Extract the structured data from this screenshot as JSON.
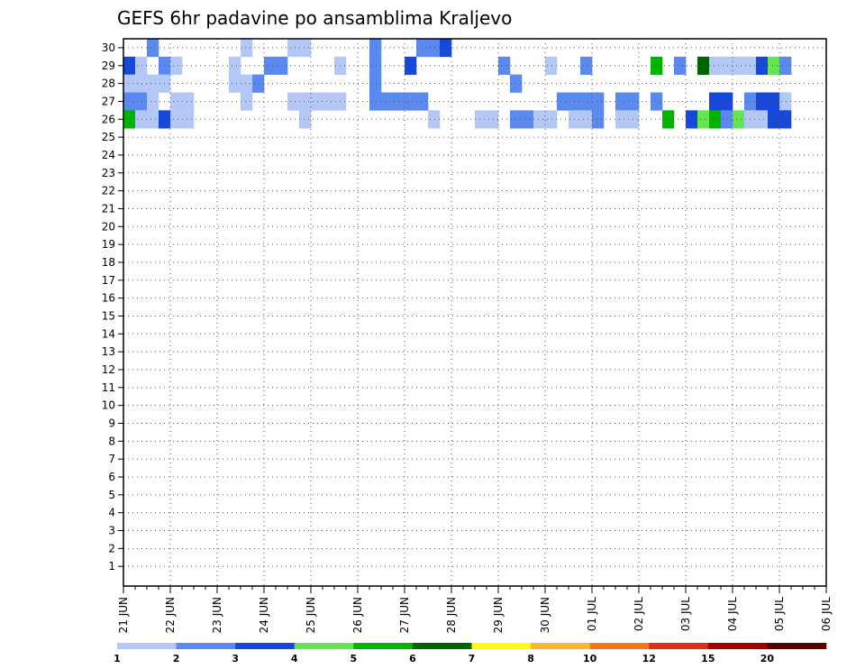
{
  "chart_data": {
    "type": "heatmap",
    "title": "GEFS 6hr padavine po ansamblima Kraljevo",
    "xlabel": "",
    "ylabel": "",
    "y_categories": [
      1,
      2,
      3,
      4,
      5,
      6,
      7,
      8,
      9,
      10,
      11,
      12,
      13,
      14,
      15,
      16,
      17,
      18,
      19,
      20,
      21,
      22,
      23,
      24,
      25,
      26,
      27,
      28,
      29,
      30
    ],
    "x_tick_labels": [
      "21 JUN",
      "22 JUN",
      "23 JUN",
      "24 JUN",
      "25 JUN",
      "26 JUN",
      "27 JUN",
      "28 JUN",
      "29 JUN",
      "30 JUN",
      "01 JUL",
      "02 JUL",
      "03 JUL",
      "04 JUL",
      "05 JUL",
      "06 JUL"
    ],
    "x_steps_per_day": 4,
    "x_range_steps": [
      0,
      60
    ],
    "colorbar": {
      "labels": [
        "1",
        "2",
        "3",
        "4",
        "5",
        "6",
        "7",
        "8",
        "10",
        "12",
        "15",
        "20"
      ],
      "colors": [
        "#b4c8f8",
        "#5a8af0",
        "#1648dc",
        "#64e650",
        "#00b400",
        "#006400",
        "#ffff00",
        "#ffb432",
        "#fa7814",
        "#dc3214",
        "#a00000",
        "#5a0000"
      ]
    },
    "grid": true,
    "cells": [
      [
        2,
        30,
        1
      ],
      [
        10,
        30,
        0
      ],
      [
        14,
        30,
        0
      ],
      [
        15,
        30,
        0
      ],
      [
        21,
        30,
        1
      ],
      [
        25,
        30,
        1
      ],
      [
        26,
        30,
        1
      ],
      [
        27,
        30,
        2
      ],
      [
        0,
        29,
        2
      ],
      [
        1,
        29,
        0
      ],
      [
        3,
        29,
        1
      ],
      [
        4,
        29,
        0
      ],
      [
        9,
        29,
        0
      ],
      [
        12,
        29,
        1
      ],
      [
        13,
        29,
        1
      ],
      [
        18,
        29,
        0
      ],
      [
        21,
        29,
        1
      ],
      [
        24,
        29,
        2
      ],
      [
        32,
        29,
        1
      ],
      [
        36,
        29,
        0
      ],
      [
        39,
        29,
        1
      ],
      [
        45,
        29,
        4
      ],
      [
        47,
        29,
        1
      ],
      [
        49,
        29,
        5
      ],
      [
        50,
        29,
        0
      ],
      [
        51,
        29,
        0
      ],
      [
        52,
        29,
        0
      ],
      [
        53,
        29,
        0
      ],
      [
        54,
        29,
        2
      ],
      [
        55,
        29,
        3
      ],
      [
        56,
        29,
        1
      ],
      [
        0,
        28,
        0
      ],
      [
        1,
        28,
        0
      ],
      [
        2,
        28,
        0
      ],
      [
        3,
        28,
        0
      ],
      [
        9,
        28,
        0
      ],
      [
        10,
        28,
        0
      ],
      [
        11,
        28,
        1
      ],
      [
        21,
        28,
        1
      ],
      [
        33,
        28,
        1
      ],
      [
        0,
        27,
        1
      ],
      [
        1,
        27,
        1
      ],
      [
        2,
        27,
        0
      ],
      [
        4,
        27,
        0
      ],
      [
        5,
        27,
        0
      ],
      [
        10,
        27,
        0
      ],
      [
        14,
        27,
        0
      ],
      [
        15,
        27,
        0
      ],
      [
        16,
        27,
        0
      ],
      [
        17,
        27,
        0
      ],
      [
        18,
        27,
        0
      ],
      [
        21,
        27,
        1
      ],
      [
        22,
        27,
        1
      ],
      [
        23,
        27,
        1
      ],
      [
        24,
        27,
        1
      ],
      [
        25,
        27,
        1
      ],
      [
        37,
        27,
        1
      ],
      [
        38,
        27,
        1
      ],
      [
        39,
        27,
        1
      ],
      [
        40,
        27,
        1
      ],
      [
        42,
        27,
        1
      ],
      [
        43,
        27,
        1
      ],
      [
        45,
        27,
        1
      ],
      [
        50,
        27,
        2
      ],
      [
        51,
        27,
        2
      ],
      [
        53,
        27,
        1
      ],
      [
        54,
        27,
        2
      ],
      [
        55,
        27,
        2
      ],
      [
        56,
        27,
        0
      ],
      [
        0,
        26,
        4
      ],
      [
        1,
        26,
        0
      ],
      [
        2,
        26,
        0
      ],
      [
        3,
        26,
        2
      ],
      [
        4,
        26,
        0
      ],
      [
        5,
        26,
        0
      ],
      [
        15,
        26,
        0
      ],
      [
        26,
        26,
        0
      ],
      [
        30,
        26,
        0
      ],
      [
        31,
        26,
        0
      ],
      [
        33,
        26,
        1
      ],
      [
        34,
        26,
        1
      ],
      [
        35,
        26,
        0
      ],
      [
        36,
        26,
        0
      ],
      [
        38,
        26,
        0
      ],
      [
        39,
        26,
        0
      ],
      [
        40,
        26,
        1
      ],
      [
        42,
        26,
        0
      ],
      [
        43,
        26,
        0
      ],
      [
        46,
        26,
        4
      ],
      [
        48,
        26,
        2
      ],
      [
        49,
        26,
        3
      ],
      [
        50,
        26,
        4
      ],
      [
        51,
        26,
        1
      ],
      [
        52,
        26,
        3
      ],
      [
        53,
        26,
        0
      ],
      [
        54,
        26,
        0
      ],
      [
        55,
        26,
        2
      ],
      [
        56,
        26,
        2
      ]
    ]
  }
}
